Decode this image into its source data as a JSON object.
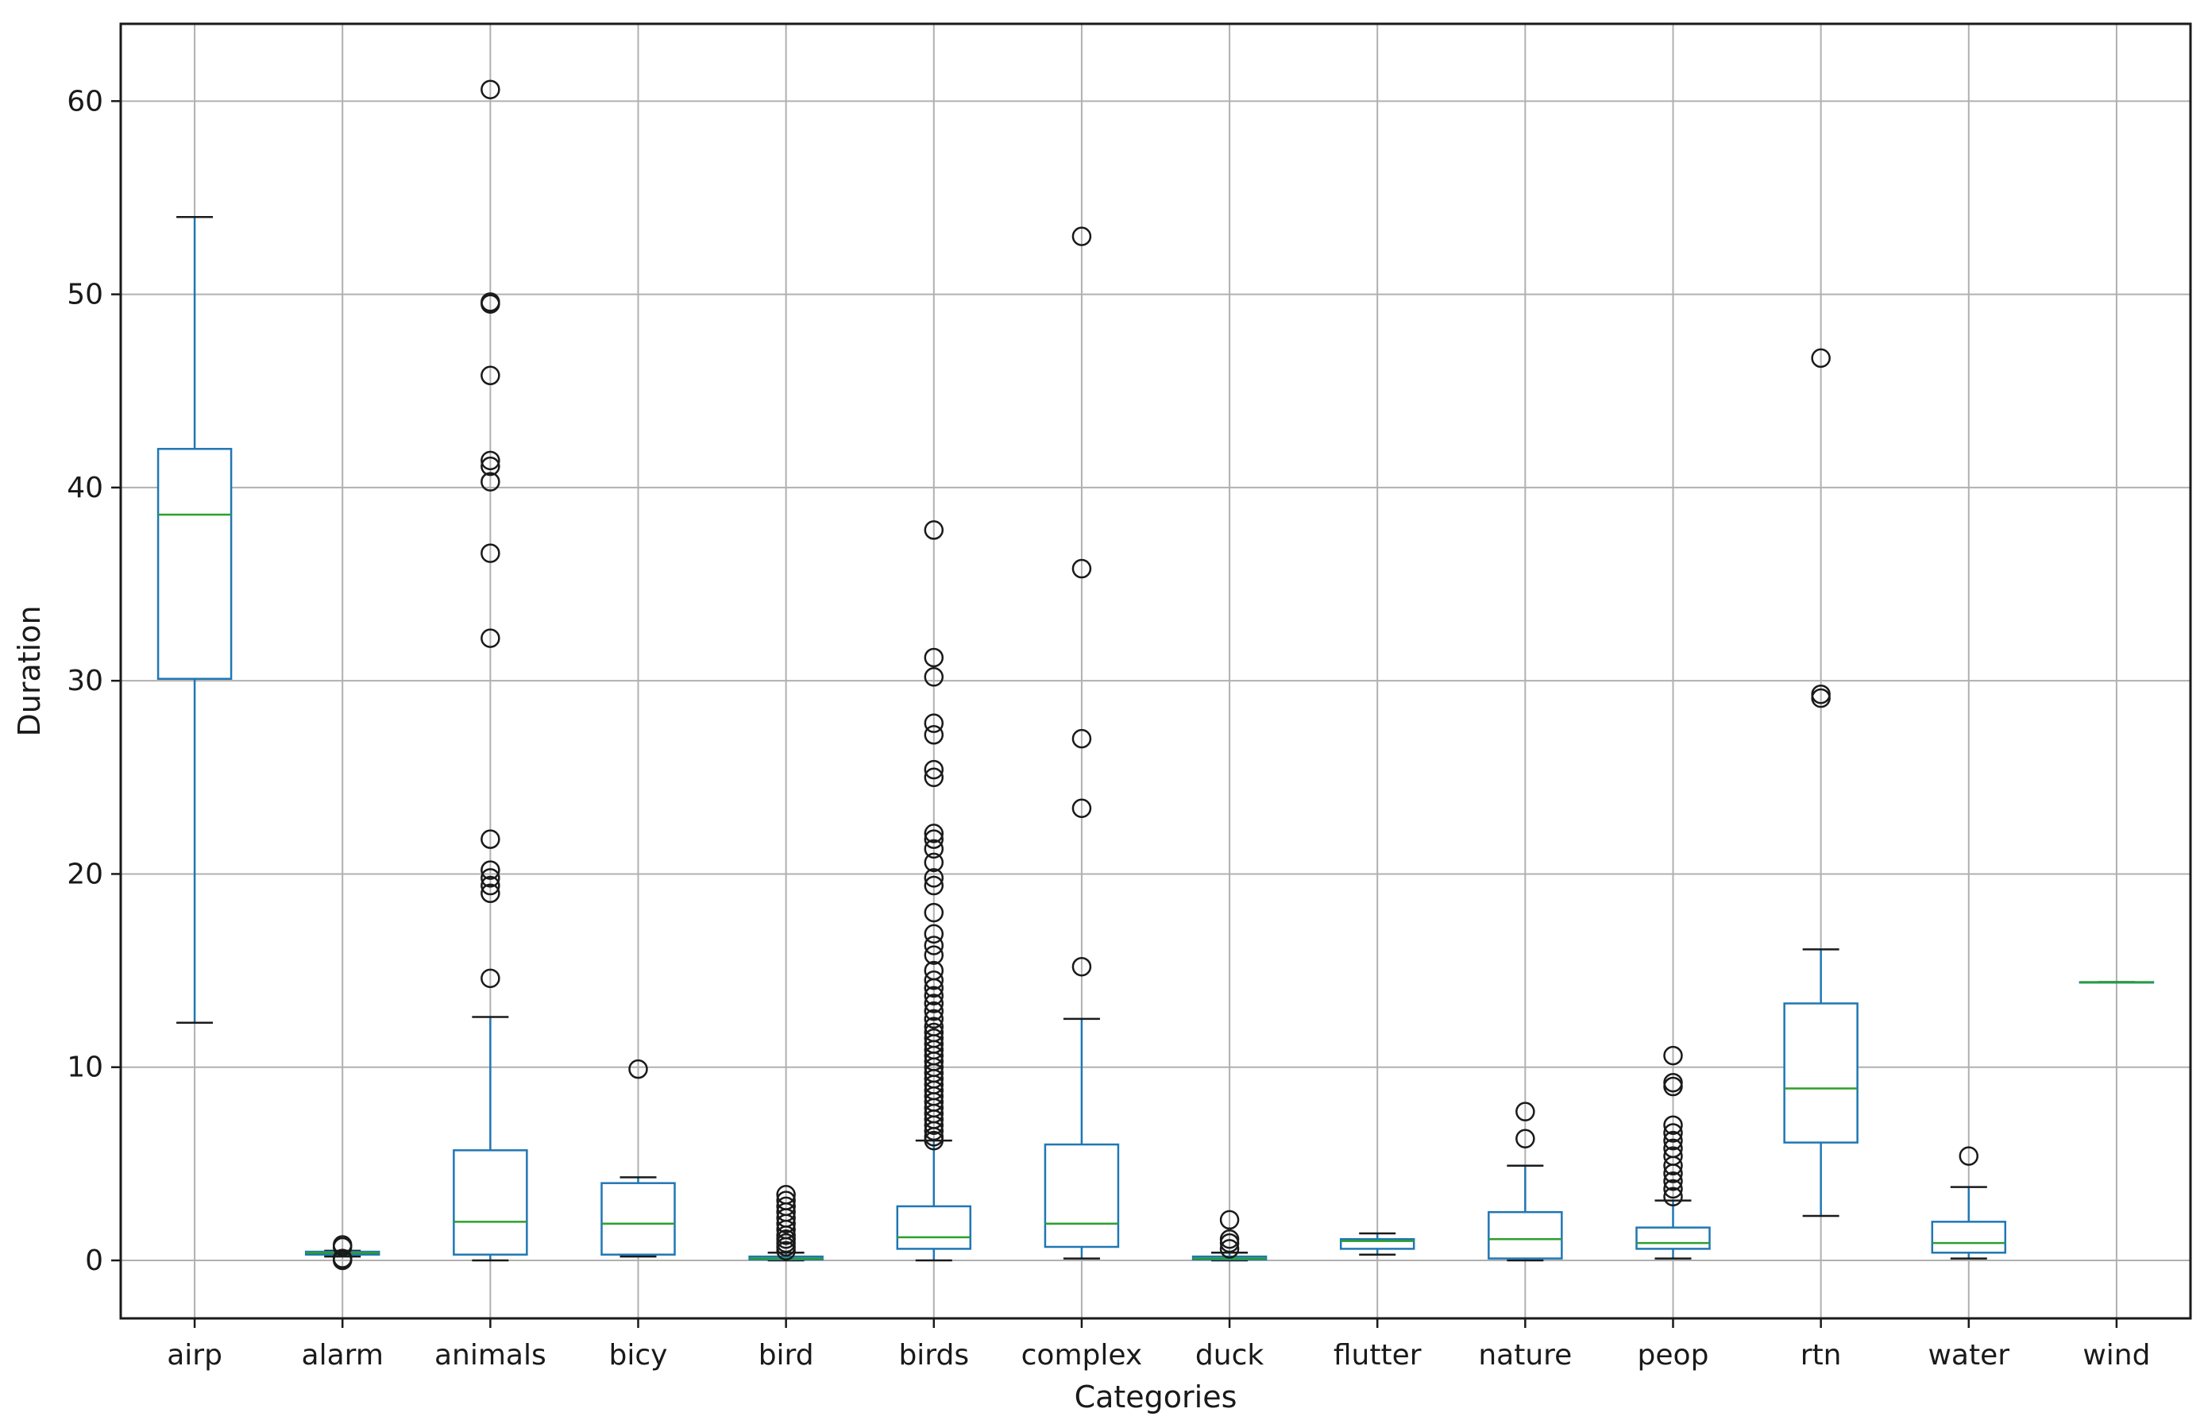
{
  "chart_data": {
    "type": "box",
    "xlabel": "Categories",
    "ylabel": "Duration",
    "ylim": [
      -3,
      64
    ],
    "yticks": [
      0,
      10,
      20,
      30,
      40,
      50,
      60
    ],
    "grid": true,
    "colors": {
      "box": "#1f77b4",
      "median": "#2ca02c",
      "flier": "#1a1a1a",
      "grid": "#b0b0b0",
      "frame": "#1a1a1a"
    },
    "categories": [
      "airp",
      "alarm",
      "animals",
      "bicy",
      "bird",
      "birds",
      "complex",
      "duck",
      "flutter",
      "nature",
      "peop",
      "rtn",
      "water",
      "wind"
    ],
    "boxes": [
      {
        "name": "airp",
        "whislo": 12.3,
        "q1": 30.1,
        "med": 38.6,
        "q3": 42.0,
        "whishi": 54.0,
        "fliers": []
      },
      {
        "name": "alarm",
        "whislo": 0.2,
        "q1": 0.3,
        "med": 0.4,
        "q3": 0.45,
        "whishi": 0.5,
        "fliers": [
          0.0,
          0.05,
          0.1,
          0.7,
          0.8
        ]
      },
      {
        "name": "animals",
        "whislo": 0.0,
        "q1": 0.3,
        "med": 2.0,
        "q3": 5.7,
        "whishi": 12.6,
        "fliers": [
          14.6,
          19.0,
          19.4,
          19.8,
          20.2,
          21.8,
          32.2,
          36.6,
          40.3,
          41.1,
          41.4,
          45.8,
          49.5,
          49.6,
          60.6
        ]
      },
      {
        "name": "bicy",
        "whislo": 0.2,
        "q1": 0.3,
        "med": 1.9,
        "q3": 4.0,
        "whishi": 4.3,
        "fliers": [
          9.9
        ]
      },
      {
        "name": "bird",
        "whislo": 0.0,
        "q1": 0.05,
        "med": 0.1,
        "q3": 0.2,
        "whishi": 0.4,
        "fliers": [
          0.5,
          0.7,
          0.9,
          1.1,
          1.3,
          1.6,
          1.9,
          2.2,
          2.5,
          2.8,
          3.1,
          3.4
        ]
      },
      {
        "name": "birds",
        "whislo": 0.0,
        "q1": 0.6,
        "med": 1.2,
        "q3": 2.8,
        "whishi": 6.2,
        "fliers": [
          6.2,
          6.4,
          6.7,
          7.0,
          7.3,
          7.6,
          7.9,
          8.2,
          8.5,
          8.8,
          9.1,
          9.4,
          9.7,
          10.0,
          10.3,
          10.6,
          10.9,
          11.2,
          11.5,
          11.8,
          12.1,
          12.5,
          12.9,
          13.3,
          13.7,
          14.1,
          14.5,
          15.0,
          15.8,
          16.3,
          16.9,
          18.0,
          19.4,
          19.8,
          20.6,
          21.3,
          21.8,
          22.1,
          25.0,
          25.4,
          27.2,
          27.8,
          30.2,
          31.2,
          37.8
        ]
      },
      {
        "name": "complex",
        "whislo": 0.1,
        "q1": 0.7,
        "med": 1.9,
        "q3": 6.0,
        "whishi": 12.5,
        "fliers": [
          15.2,
          23.4,
          27.0,
          35.8,
          53.0
        ]
      },
      {
        "name": "duck",
        "whislo": 0.0,
        "q1": 0.05,
        "med": 0.1,
        "q3": 0.2,
        "whishi": 0.4,
        "fliers": [
          0.6,
          0.9,
          1.1,
          2.1
        ]
      },
      {
        "name": "flutter",
        "whislo": 0.3,
        "q1": 0.6,
        "med": 1.0,
        "q3": 1.1,
        "whishi": 1.4,
        "fliers": []
      },
      {
        "name": "nature",
        "whislo": 0.0,
        "q1": 0.1,
        "med": 1.1,
        "q3": 2.5,
        "whishi": 4.9,
        "fliers": [
          6.3,
          7.7
        ]
      },
      {
        "name": "peop",
        "whislo": 0.1,
        "q1": 0.6,
        "med": 0.9,
        "q3": 1.7,
        "whishi": 3.1,
        "fliers": [
          3.3,
          3.7,
          4.1,
          4.5,
          4.9,
          5.4,
          5.8,
          6.2,
          6.6,
          7.0,
          9.0,
          9.2,
          10.6
        ]
      },
      {
        "name": "rtn",
        "whislo": 2.3,
        "q1": 6.1,
        "med": 8.9,
        "q3": 13.3,
        "whishi": 16.1,
        "fliers": [
          29.1,
          29.3,
          46.7
        ]
      },
      {
        "name": "water",
        "whislo": 0.1,
        "q1": 0.4,
        "med": 0.9,
        "q3": 2.0,
        "whishi": 3.8,
        "fliers": [
          5.4
        ]
      },
      {
        "name": "wind",
        "whislo": 14.4,
        "q1": 14.4,
        "med": 14.4,
        "q3": 14.4,
        "whishi": 14.4,
        "fliers": []
      }
    ]
  }
}
